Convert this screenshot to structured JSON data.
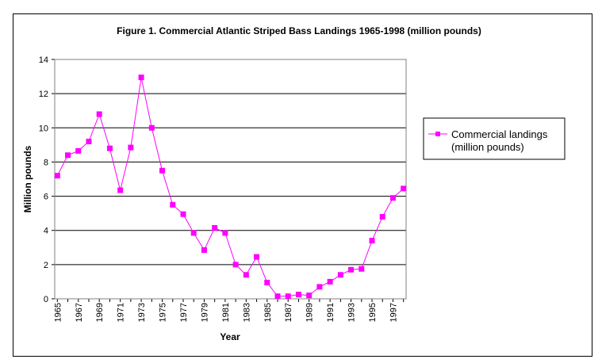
{
  "chart_data": {
    "type": "line",
    "title": "Figure 1.  Commercial Atlantic Striped Bass Landings 1965-1998 (million pounds)",
    "xlabel": "Year",
    "ylabel": "Million pounds",
    "ylim": [
      0,
      14
    ],
    "yticks": [
      "0",
      "2",
      "4",
      "6",
      "8",
      "10",
      "12",
      "14"
    ],
    "xtick_labels": [
      "1965",
      "1967",
      "1969",
      "1971",
      "1973",
      "1975",
      "1977",
      "1979",
      "1981",
      "1983",
      "1985",
      "1987",
      "1989",
      "1991",
      "1993",
      "1995",
      "1997"
    ],
    "grid": "horizontal",
    "legend_position": "right",
    "x": [
      1965,
      1966,
      1967,
      1968,
      1969,
      1970,
      1971,
      1972,
      1973,
      1974,
      1975,
      1976,
      1977,
      1978,
      1979,
      1980,
      1981,
      1982,
      1983,
      1984,
      1985,
      1986,
      1987,
      1988,
      1989,
      1990,
      1991,
      1992,
      1993,
      1994,
      1995,
      1996,
      1997,
      1998
    ],
    "series": [
      {
        "name": "Commercial landings (million pounds)",
        "legend_lines": [
          "Commercial landings",
          "(million pounds)"
        ],
        "color": "#ff00ff",
        "values": [
          7.2,
          8.4,
          8.65,
          9.2,
          10.8,
          8.8,
          6.35,
          8.85,
          12.95,
          10.0,
          7.5,
          5.5,
          4.95,
          3.85,
          2.85,
          4.15,
          3.85,
          2.0,
          1.4,
          2.45,
          0.95,
          0.15,
          0.15,
          0.25,
          0.2,
          0.7,
          1.0,
          1.4,
          1.7,
          1.75,
          3.4,
          4.8,
          5.9,
          6.45
        ]
      }
    ]
  }
}
